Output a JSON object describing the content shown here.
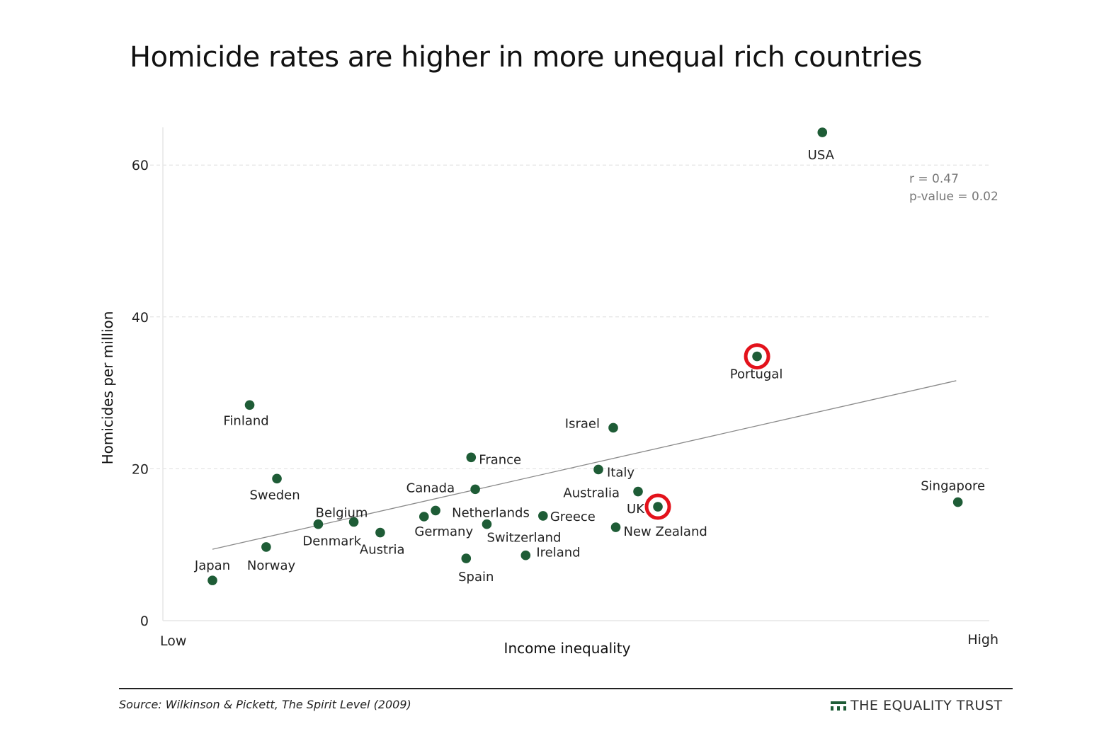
{
  "title": "Homicide rates are higher in more unequal rich countries",
  "source": "Source: Wilkinson & Pickett, The Spirit Level (2009)",
  "brand": "THE EQUALITY TRUST",
  "colors": {
    "point": "#1e5c36",
    "highlight": "#e3121b",
    "trend": "#8a8a8a",
    "grid": "#dddddd"
  },
  "chart_data": {
    "type": "scatter",
    "title": "Homicide rates are higher in more unequal rich countries",
    "xlabel": "Income inequality",
    "ylabel": "Homicides per million",
    "x_tick_labels": {
      "low": "Low",
      "high": "High"
    },
    "xlim": [
      0,
      100
    ],
    "ylim": [
      0,
      65
    ],
    "yticks": [
      0,
      20,
      40,
      60
    ],
    "grid": "horizontal dashed",
    "annotations": [
      "r = 0.47",
      "p-value = 0.02"
    ],
    "trendline": {
      "x": [
        6,
        96
      ],
      "y": [
        9.4,
        31.6
      ]
    },
    "highlighted": [
      "Portugal",
      "UK"
    ],
    "points": [
      {
        "label": "Japan",
        "x": 6,
        "y": 5.3
      },
      {
        "label": "Finland",
        "x": 10.5,
        "y": 28.4
      },
      {
        "label": "Norway",
        "x": 12.5,
        "y": 9.7
      },
      {
        "label": "Sweden",
        "x": 13.8,
        "y": 18.7
      },
      {
        "label": "Denmark",
        "x": 18.8,
        "y": 12.7
      },
      {
        "label": "Belgium",
        "x": 23.1,
        "y": 13
      },
      {
        "label": "Austria",
        "x": 26.3,
        "y": 11.6
      },
      {
        "label": "Germany",
        "x": 31.6,
        "y": 13.7
      },
      {
        "label": "Netherlands",
        "x": 33,
        "y": 14.5
      },
      {
        "label": "Spain",
        "x": 36.7,
        "y": 8.2
      },
      {
        "label": "France",
        "x": 37.3,
        "y": 21.5
      },
      {
        "label": "Canada",
        "x": 37.8,
        "y": 17.3
      },
      {
        "label": "Switzerland",
        "x": 39.2,
        "y": 12.7
      },
      {
        "label": "Ireland",
        "x": 43.9,
        "y": 8.6
      },
      {
        "label": "Greece",
        "x": 46,
        "y": 13.8
      },
      {
        "label": "Italy",
        "x": 52.7,
        "y": 19.9
      },
      {
        "label": "Israel",
        "x": 54.5,
        "y": 25.4
      },
      {
        "label": "New Zealand",
        "x": 54.8,
        "y": 12.3
      },
      {
        "label": "Australia",
        "x": 57.5,
        "y": 17
      },
      {
        "label": "UK",
        "x": 59.9,
        "y": 15
      },
      {
        "label": "Portugal",
        "x": 71.9,
        "y": 34.8
      },
      {
        "label": "USA",
        "x": 79.8,
        "y": 64.3
      },
      {
        "label": "Singapore",
        "x": 96.2,
        "y": 15.6
      }
    ]
  }
}
